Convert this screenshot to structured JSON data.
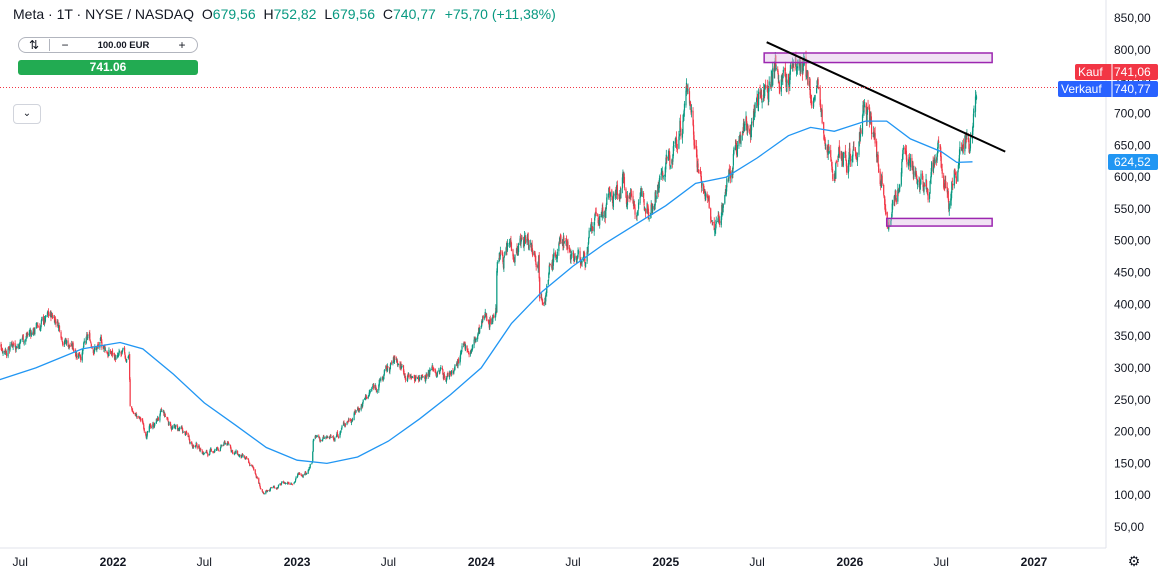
{
  "header": {
    "symbol": "Meta · 1T · NYSE / NASDAQ",
    "o_label": "O",
    "o_value": "679,56",
    "h_label": "H",
    "h_value": "752,82",
    "l_label": "L",
    "l_value": "679,56",
    "c_label": "C",
    "c_value": "740,77",
    "change": "+75,70 (+11,38%)"
  },
  "trade": {
    "quantity": "100.00 EUR",
    "price_button": "741.06",
    "minus_icon": "minus-icon",
    "plus_icon": "plus-icon",
    "swap_icon": "swap-icon"
  },
  "colors": {
    "up": "#089981",
    "down": "#f23645",
    "ma": "#2196f3",
    "buy_label": "#f23645",
    "sell_label": "#2962ff",
    "box": "#9c27b0",
    "trendline": "#000000"
  },
  "chart_data": {
    "type": "candlestick",
    "y_ticks": [
      "850,00",
      "800,00",
      "750,00",
      "700,00",
      "650,00",
      "600,00",
      "550,00",
      "500,00",
      "450,00",
      "400,00",
      "350,00",
      "300,00",
      "250,00",
      "200,00",
      "150,00",
      "100,00",
      "50,00"
    ],
    "ylim": [
      15,
      862
    ],
    "x_ticks": [
      "Jul",
      "2022",
      "Jul",
      "2023",
      "Jul",
      "2024",
      "Jul",
      "2025",
      "Jul",
      "2026",
      "Jul",
      "2027"
    ],
    "x_tick_dates": [
      "2021-07",
      "2022-01",
      "2022-07",
      "2023-01",
      "2023-07",
      "2024-01",
      "2024-07",
      "2025-01",
      "2025-07",
      "2026-01",
      "2026-07",
      "2027-01"
    ],
    "price_path": [
      [
        "2021-05-15",
        330
      ],
      [
        "2021-07-01",
        350
      ],
      [
        "2021-08-15",
        370
      ],
      [
        "2021-09-10",
        380
      ],
      [
        "2021-10-15",
        330
      ],
      [
        "2021-11-15",
        340
      ],
      [
        "2021-12-15",
        330
      ],
      [
        "2022-01-25",
        305
      ],
      [
        "2022-02-02",
        323
      ],
      [
        "2022-02-04",
        237
      ],
      [
        "2022-03-10",
        200
      ],
      [
        "2022-04-05",
        225
      ],
      [
        "2022-05-20",
        195
      ],
      [
        "2022-07-10",
        165
      ],
      [
        "2022-08-15",
        180
      ],
      [
        "2022-10-10",
        135
      ],
      [
        "2022-10-27",
        97
      ],
      [
        "2022-11-10",
        112
      ],
      [
        "2022-12-15",
        120
      ],
      [
        "2023-01-31",
        150
      ],
      [
        "2023-02-02",
        188
      ],
      [
        "2023-03-10",
        185
      ],
      [
        "2023-04-20",
        230
      ],
      [
        "2023-06-15",
        280
      ],
      [
        "2023-07-15",
        310
      ],
      [
        "2023-08-20",
        285
      ],
      [
        "2023-09-20",
        305
      ],
      [
        "2023-10-25",
        290
      ],
      [
        "2023-12-15",
        335
      ],
      [
        "2024-01-31",
        400
      ],
      [
        "2024-02-01",
        470
      ],
      [
        "2024-03-15",
        500
      ],
      [
        "2024-04-24",
        490
      ],
      [
        "2024-04-26",
        435
      ],
      [
        "2024-06-15",
        505
      ],
      [
        "2024-07-20",
        470
      ],
      [
        "2024-08-20",
        525
      ],
      [
        "2024-10-10",
        590
      ],
      [
        "2024-11-15",
        560
      ],
      [
        "2024-12-15",
        600
      ],
      [
        "2025-01-15",
        620
      ],
      [
        "2025-02-14",
        736
      ],
      [
        "2025-03-10",
        620
      ],
      [
        "2025-04-08",
        500
      ],
      [
        "2025-05-15",
        640
      ],
      [
        "2025-06-30",
        720
      ],
      [
        "2025-08-01",
        775
      ],
      [
        "2025-08-25",
        740
      ],
      [
        "2025-09-15",
        780
      ],
      [
        "2025-10-15",
        720
      ],
      [
        "2025-10-30",
        730
      ],
      [
        "2025-11-15",
        600
      ],
      [
        "2025-12-15",
        660
      ],
      [
        "2026-01-10",
        650
      ],
      [
        "2026-01-28",
        700
      ],
      [
        "2026-02-20",
        650
      ],
      [
        "2026-03-25",
        545
      ],
      [
        "2026-04-25",
        650
      ],
      [
        "2026-05-25",
        580
      ],
      [
        "2026-06-25",
        620
      ],
      [
        "2026-07-20",
        560
      ],
      [
        "2026-08-10",
        650
      ],
      [
        "2026-09-01",
        680
      ],
      [
        "2026-09-09",
        741
      ]
    ],
    "moving_average": [
      [
        "2021-05-15",
        280
      ],
      [
        "2021-08-01",
        300
      ],
      [
        "2021-11-01",
        330
      ],
      [
        "2022-01-15",
        340
      ],
      [
        "2022-03-01",
        330
      ],
      [
        "2022-05-01",
        290
      ],
      [
        "2022-07-01",
        245
      ],
      [
        "2022-09-01",
        210
      ],
      [
        "2022-11-01",
        175
      ],
      [
        "2023-01-01",
        155
      ],
      [
        "2023-03-01",
        150
      ],
      [
        "2023-05-01",
        160
      ],
      [
        "2023-07-01",
        185
      ],
      [
        "2023-09-01",
        220
      ],
      [
        "2023-11-01",
        258
      ],
      [
        "2024-01-01",
        300
      ],
      [
        "2024-03-01",
        370
      ],
      [
        "2024-05-01",
        420
      ],
      [
        "2024-07-01",
        460
      ],
      [
        "2024-09-01",
        495
      ],
      [
        "2024-11-01",
        525
      ],
      [
        "2025-01-01",
        555
      ],
      [
        "2025-03-01",
        590
      ],
      [
        "2025-05-01",
        600
      ],
      [
        "2025-07-01",
        630
      ],
      [
        "2025-09-01",
        665
      ],
      [
        "2025-10-15",
        678
      ],
      [
        "2025-12-01",
        672
      ],
      [
        "2026-02-01",
        688
      ],
      [
        "2026-03-15",
        688
      ],
      [
        "2026-05-01",
        660
      ],
      [
        "2026-07-01",
        640
      ],
      [
        "2026-08-01",
        623
      ],
      [
        "2026-09-01",
        624
      ]
    ],
    "last_close": 740.77,
    "buy_label": "Kauf",
    "buy_price": "741,06",
    "sell_label": "Verkauf",
    "sell_price": "740,77",
    "ma_value": "624,52",
    "resistance_box": {
      "start": "2025-07-15",
      "end": "2026-10-10",
      "low": 780,
      "high": 795
    },
    "support_box": {
      "start": "2026-03-15",
      "end": "2026-10-10",
      "low": 523,
      "high": 535
    },
    "trendline": {
      "start": [
        "2025-07-20",
        812
      ],
      "end": [
        "2026-11-05",
        640
      ]
    }
  }
}
